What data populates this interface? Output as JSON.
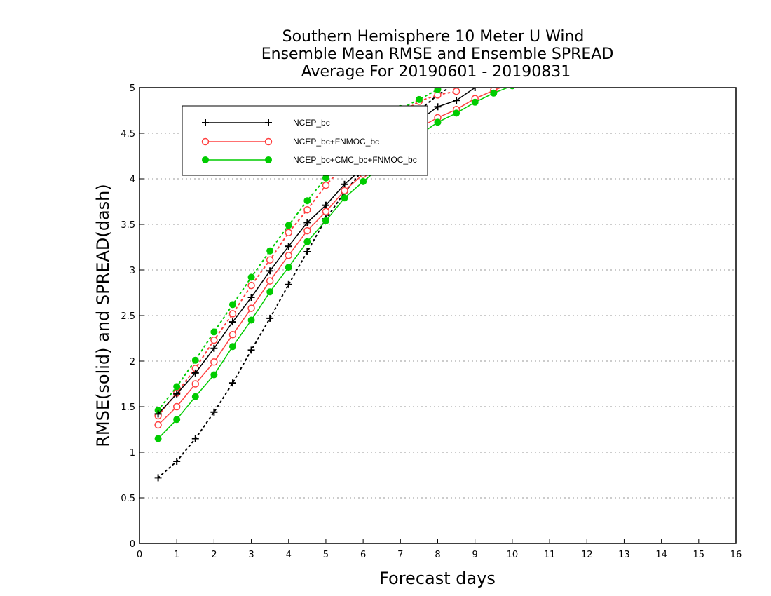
{
  "chart_data": {
    "type": "line",
    "title_lines": [
      "Southern Hemisphere 10 Meter U Wind",
      "Ensemble Mean RMSE and Ensemble SPREAD",
      "Average For 20190601 - 20190831"
    ],
    "xlabel": "Forecast days",
    "ylabel": "RMSE(solid) and SPREAD(dash)",
    "xlim": [
      0,
      16
    ],
    "ylim": [
      0,
      5
    ],
    "xticks": [
      "0",
      "1",
      "2",
      "3",
      "4",
      "5",
      "6",
      "7",
      "8",
      "9",
      "10",
      "11",
      "12",
      "13",
      "14",
      "15",
      "16"
    ],
    "yticks": [
      "0",
      "0.5",
      "1",
      "1.5",
      "2",
      "2.5",
      "3",
      "3.5",
      "4",
      "4.5",
      "5"
    ],
    "grid": "horizontal dotted",
    "legend_position": "top-left",
    "series": [
      {
        "name": "NCEP_bc",
        "color": "#000000",
        "marker": "plus",
        "rmse": {
          "x": [
            0.5,
            1,
            1.5,
            2,
            2.5,
            3,
            3.5,
            4,
            4.5,
            5,
            5.5,
            6,
            6.5,
            7,
            7.5,
            8,
            8.5,
            9,
            9.5,
            10
          ],
          "y": [
            1.42,
            1.64,
            1.87,
            2.14,
            2.43,
            2.7,
            2.99,
            3.26,
            3.52,
            3.71,
            3.94,
            4.12,
            4.27,
            4.43,
            4.64,
            4.79,
            4.86,
            5.0,
            5.1,
            5.2
          ]
        },
        "spread": {
          "x": [
            0.5,
            1,
            1.5,
            2,
            2.5,
            3,
            3.5,
            4,
            4.5,
            5,
            5.5,
            6,
            6.5,
            7,
            7.5,
            8,
            8.5,
            9
          ],
          "y": [
            0.72,
            0.9,
            1.15,
            1.44,
            1.76,
            2.12,
            2.47,
            2.84,
            3.2,
            3.56,
            3.85,
            4.1,
            4.33,
            4.55,
            4.75,
            4.92,
            5.05,
            5.2
          ]
        }
      },
      {
        "name": "NCEP_bc+FNMOC_bc",
        "color": "#ff4040",
        "marker": "open-circle",
        "rmse": {
          "x": [
            0.5,
            1,
            1.5,
            2,
            2.5,
            3,
            3.5,
            4,
            4.5,
            5,
            5.5,
            6,
            6.5,
            7,
            7.5,
            8,
            8.5,
            9,
            9.5,
            10
          ],
          "y": [
            1.3,
            1.5,
            1.75,
            1.99,
            2.29,
            2.58,
            2.88,
            3.16,
            3.43,
            3.64,
            3.87,
            4.05,
            4.21,
            4.37,
            4.56,
            4.67,
            4.76,
            4.88,
            4.97,
            5.05
          ]
        },
        "spread": {
          "x": [
            0.5,
            1,
            1.5,
            2,
            2.5,
            3,
            3.5,
            4,
            4.5,
            5,
            5.5,
            6,
            6.5,
            7,
            7.5,
            8,
            8.5
          ],
          "y": [
            1.4,
            1.65,
            1.92,
            2.23,
            2.52,
            2.83,
            3.11,
            3.41,
            3.66,
            3.93,
            4.15,
            4.37,
            4.55,
            4.72,
            4.85,
            4.92,
            4.96
          ]
        }
      },
      {
        "name": "NCEP_bc+CMC_bc+FNMOC_bc",
        "color": "#00cc00",
        "marker": "filled-circle",
        "rmse": {
          "x": [
            0.5,
            1,
            1.5,
            2,
            2.5,
            3,
            3.5,
            4,
            4.5,
            5,
            5.5,
            6,
            6.5,
            7,
            7.5,
            8,
            8.5,
            9,
            9.5,
            10
          ],
          "y": [
            1.15,
            1.36,
            1.61,
            1.85,
            2.16,
            2.45,
            2.76,
            3.03,
            3.31,
            3.54,
            3.79,
            3.97,
            4.14,
            4.3,
            4.48,
            4.62,
            4.72,
            4.84,
            4.94,
            5.02
          ]
        },
        "spread": {
          "x": [
            0.5,
            1,
            1.5,
            2,
            2.5,
            3,
            3.5,
            4,
            4.5,
            5,
            5.5,
            6,
            6.5,
            7,
            7.5,
            8
          ],
          "y": [
            1.46,
            1.72,
            2.01,
            2.32,
            2.62,
            2.92,
            3.21,
            3.49,
            3.76,
            4.01,
            4.24,
            4.45,
            4.64,
            4.77,
            4.87,
            4.98
          ]
        }
      }
    ]
  }
}
